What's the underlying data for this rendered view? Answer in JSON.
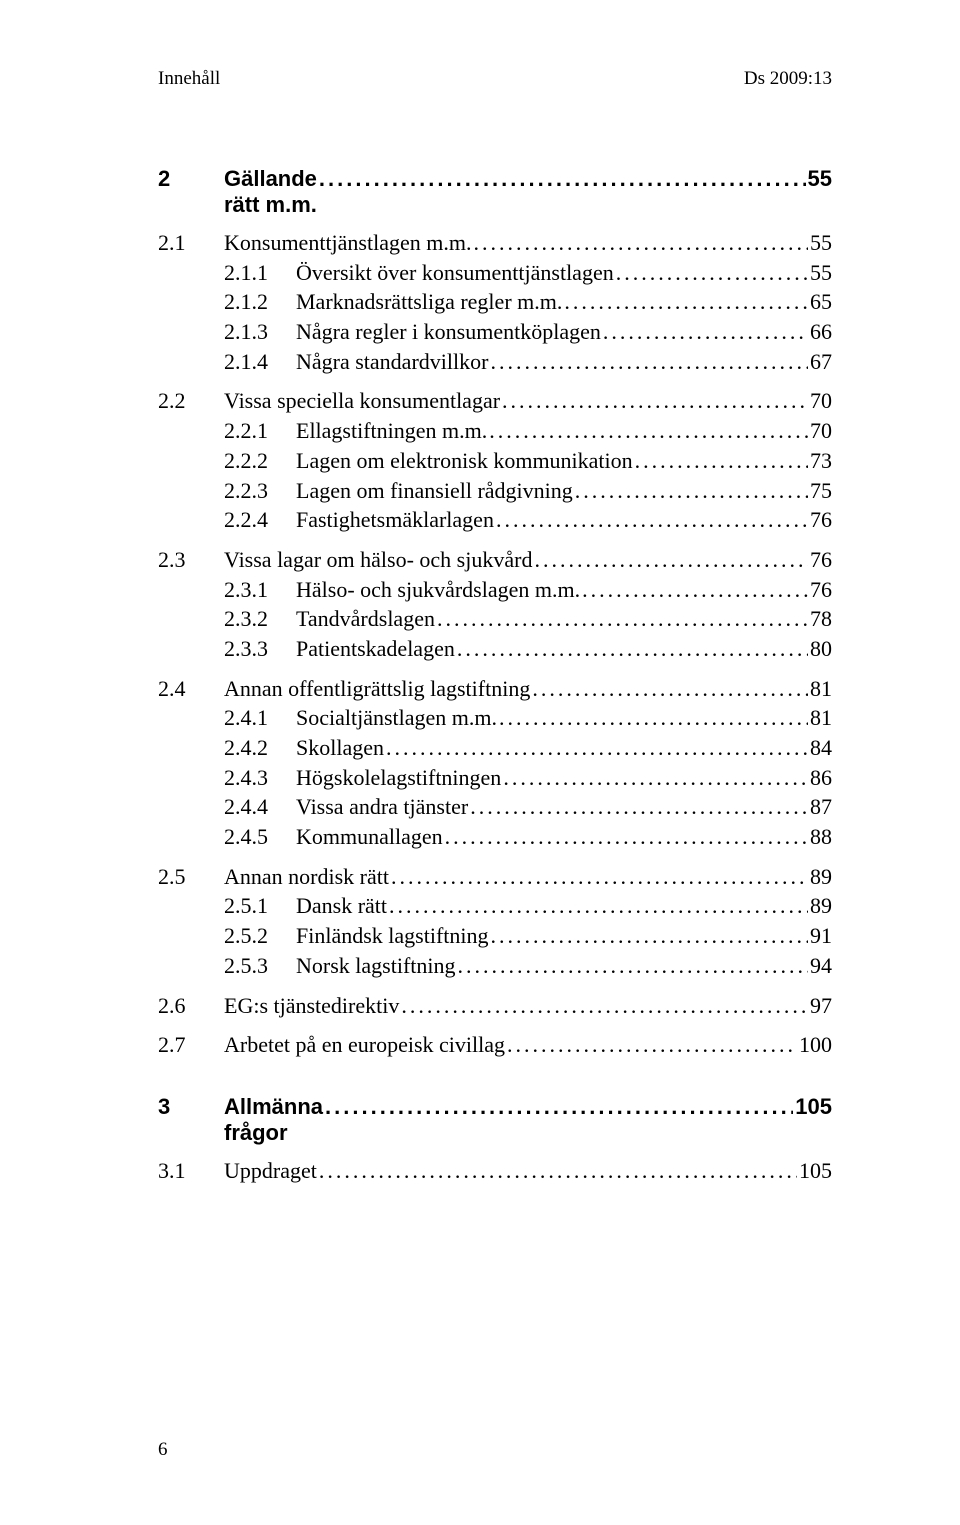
{
  "header": {
    "left": "Innehåll",
    "right": "Ds 2009:13"
  },
  "toc": [
    {
      "type": "chapter",
      "num": "2",
      "text": "Gällande rätt m.m.",
      "page": "55"
    },
    {
      "type": "section",
      "num": "2.1",
      "text": "Konsumenttjänstlagen m.m.",
      "page": "55"
    },
    {
      "type": "sub",
      "num": "2.1.1",
      "text": "Översikt över konsumenttjänstlagen",
      "page": "55"
    },
    {
      "type": "sub",
      "num": "2.1.2",
      "text": "Marknadsrättsliga regler m.m.",
      "page": "65"
    },
    {
      "type": "sub",
      "num": "2.1.3",
      "text": "Några regler i konsumentköplagen",
      "page": "66"
    },
    {
      "type": "sub",
      "num": "2.1.4",
      "text": "Några standardvillkor",
      "page": "67",
      "gap": true
    },
    {
      "type": "section",
      "num": "2.2",
      "text": "Vissa speciella konsumentlagar",
      "page": "70"
    },
    {
      "type": "sub",
      "num": "2.2.1",
      "text": "Ellagstiftningen m.m.",
      "page": "70"
    },
    {
      "type": "sub",
      "num": "2.2.2",
      "text": "Lagen om elektronisk kommunikation",
      "page": "73"
    },
    {
      "type": "sub",
      "num": "2.2.3",
      "text": "Lagen om finansiell rådgivning",
      "page": "75"
    },
    {
      "type": "sub",
      "num": "2.2.4",
      "text": "Fastighetsmäklarlagen",
      "page": "76",
      "gap": true
    },
    {
      "type": "section",
      "num": "2.3",
      "text": "Vissa lagar om hälso- och sjukvård",
      "page": "76"
    },
    {
      "type": "sub",
      "num": "2.3.1",
      "text": "Hälso- och sjukvårdslagen m.m.",
      "page": "76"
    },
    {
      "type": "sub",
      "num": "2.3.2",
      "text": "Tandvårdslagen",
      "page": "78"
    },
    {
      "type": "sub",
      "num": "2.3.3",
      "text": "Patientskadelagen",
      "page": "80",
      "gap": true
    },
    {
      "type": "section",
      "num": "2.4",
      "text": "Annan offentligrättslig lagstiftning",
      "page": "81"
    },
    {
      "type": "sub",
      "num": "2.4.1",
      "text": "Socialtjänstlagen m.m.",
      "page": "81"
    },
    {
      "type": "sub",
      "num": "2.4.2",
      "text": "Skollagen",
      "page": "84"
    },
    {
      "type": "sub",
      "num": "2.4.3",
      "text": "Högskolelagstiftningen",
      "page": "86"
    },
    {
      "type": "sub",
      "num": "2.4.4",
      "text": "Vissa andra tjänster",
      "page": "87"
    },
    {
      "type": "sub",
      "num": "2.4.5",
      "text": "Kommunallagen",
      "page": "88",
      "gap": true
    },
    {
      "type": "section",
      "num": "2.5",
      "text": "Annan nordisk rätt",
      "page": "89"
    },
    {
      "type": "sub",
      "num": "2.5.1",
      "text": "Dansk rätt",
      "page": "89"
    },
    {
      "type": "sub",
      "num": "2.5.2",
      "text": "Finländsk lagstiftning",
      "page": "91"
    },
    {
      "type": "sub",
      "num": "2.5.3",
      "text": "Norsk lagstiftning",
      "page": "94",
      "gap": true
    },
    {
      "type": "section",
      "num": "2.6",
      "text": "EG:s tjänstedirektiv",
      "page": "97",
      "gap": true
    },
    {
      "type": "section",
      "num": "2.7",
      "text": "Arbetet på en europeisk civillag",
      "page": "100"
    },
    {
      "type": "chapter",
      "num": "3",
      "text": "Allmänna frågor",
      "page": "105"
    },
    {
      "type": "section",
      "num": "3.1",
      "text": "Uppdraget",
      "page": "105"
    }
  ],
  "footer": "6"
}
